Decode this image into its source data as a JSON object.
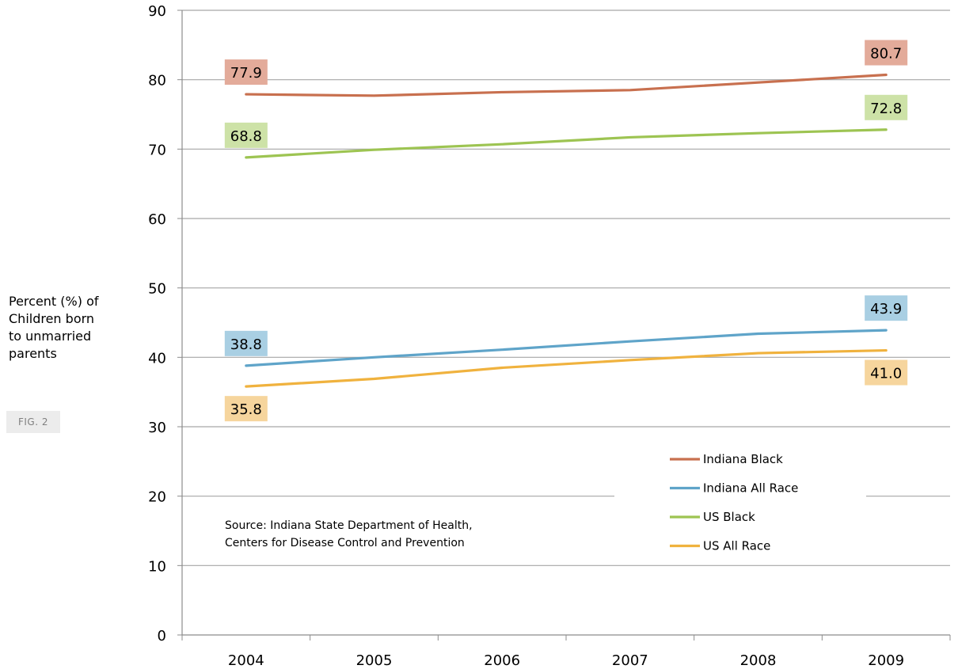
{
  "chart_data": {
    "type": "line",
    "title": "",
    "xlabel": "",
    "ylabel_lines": [
      "Percent (%) of",
      "Children born",
      "to unmarried",
      "parents"
    ],
    "figure_tag": "FIG. 2",
    "categories": [
      "2004",
      "2005",
      "2006",
      "2007",
      "2008",
      "2009"
    ],
    "ylim": [
      0,
      90
    ],
    "yticks": [
      0,
      10,
      20,
      30,
      40,
      50,
      60,
      70,
      80,
      90
    ],
    "grid": true,
    "legend_position": "lower-right",
    "series": [
      {
        "name": "Indiana Black",
        "color": "#c8704f",
        "values": [
          77.9,
          77.7,
          78.2,
          78.5,
          79.6,
          80.7
        ],
        "labels": [
          {
            "index": 0,
            "text": "77.9",
            "pos": "above",
            "bg": "#e3ab9a"
          },
          {
            "index": 5,
            "text": "80.7",
            "pos": "above",
            "bg": "#e3ab9a"
          }
        ]
      },
      {
        "name": "Indiana All Race",
        "color": "#5fa4c9",
        "values": [
          38.8,
          40.0,
          41.1,
          42.3,
          43.4,
          43.9
        ],
        "labels": [
          {
            "index": 0,
            "text": "38.8",
            "pos": "above",
            "bg": "#a9cfe3"
          },
          {
            "index": 5,
            "text": "43.9",
            "pos": "above",
            "bg": "#a9cfe3"
          }
        ]
      },
      {
        "name": "US Black",
        "color": "#9dc452",
        "values": [
          68.8,
          69.9,
          70.7,
          71.7,
          72.3,
          72.8
        ],
        "labels": [
          {
            "index": 0,
            "text": "68.8",
            "pos": "above",
            "bg": "#cde2a7"
          },
          {
            "index": 5,
            "text": "72.8",
            "pos": "above",
            "bg": "#cde2a7"
          }
        ]
      },
      {
        "name": "US All Race",
        "color": "#f0b23e",
        "values": [
          35.8,
          36.9,
          38.5,
          39.6,
          40.6,
          41.0
        ],
        "labels": [
          {
            "index": 0,
            "text": "35.8",
            "pos": "below",
            "bg": "#f6d59d"
          },
          {
            "index": 5,
            "text": "41.0",
            "pos": "below",
            "bg": "#f6d59d"
          }
        ]
      }
    ],
    "source_lines": [
      "Source: Indiana State Department of Health,",
      "Centers for Disease Control and Prevention"
    ]
  }
}
